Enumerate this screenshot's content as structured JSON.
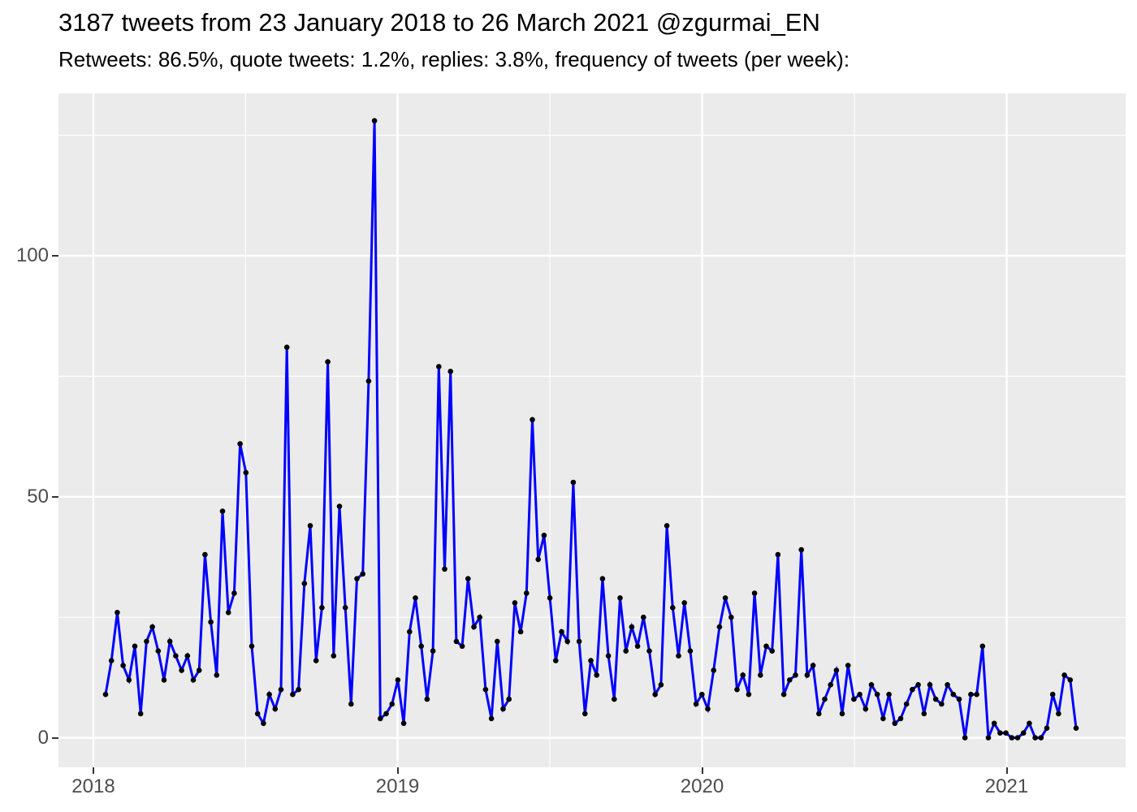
{
  "header": {
    "title": "3187 tweets from 23 January 2018 to 26 March 2021 @zgurmai_EN",
    "subtitle": "Retweets: 86.5%, quote tweets: 1.2%, replies: 3.8%, frequency of tweets (per week):"
  },
  "colors": {
    "line": "#0000FF",
    "point": "#000000",
    "panel_background": "#EBEBEB",
    "gridline": "#FFFFFF",
    "axis_text": "#4D4D4D",
    "tick_mark": "#333333",
    "title_text": "#000000"
  },
  "chart_data": {
    "type": "line",
    "title": "3187 tweets from 23 January 2018 to 26 March 2021 @zgurmai_EN",
    "subtitle": "Retweets: 86.5%, quote tweets: 1.2%, replies: 3.8%, frequency of tweets (per week):",
    "series_name": "tweets per week",
    "x_unit": "week",
    "x_first_point": "week of 23 January 2018",
    "x_last_point": "week of 26 March 2021",
    "n_points": 167,
    "values": [
      9,
      16,
      26,
      15,
      12,
      19,
      5,
      20,
      23,
      18,
      12,
      20,
      17,
      14,
      17,
      12,
      14,
      38,
      24,
      13,
      47,
      26,
      30,
      61,
      55,
      19,
      5,
      3,
      9,
      6,
      10,
      81,
      9,
      10,
      32,
      44,
      16,
      27,
      78,
      17,
      48,
      27,
      7,
      33,
      34,
      74,
      128,
      4,
      5,
      7,
      12,
      3,
      22,
      29,
      19,
      8,
      18,
      77,
      35,
      76,
      20,
      19,
      33,
      23,
      25,
      10,
      4,
      20,
      6,
      8,
      28,
      22,
      30,
      66,
      37,
      42,
      29,
      16,
      22,
      20,
      53,
      20,
      5,
      16,
      13,
      33,
      17,
      8,
      29,
      18,
      23,
      19,
      25,
      18,
      9,
      11,
      44,
      27,
      17,
      28,
      18,
      7,
      9,
      6,
      14,
      23,
      29,
      25,
      10,
      13,
      9,
      30,
      13,
      19,
      18,
      38,
      9,
      12,
      13,
      39,
      13,
      15,
      5,
      8,
      11,
      14,
      5,
      15,
      8,
      9,
      6,
      11,
      9,
      4,
      9,
      3,
      4,
      7,
      10,
      11,
      5,
      11,
      8,
      7,
      11,
      9,
      8,
      0,
      9,
      9,
      19,
      0,
      3,
      1,
      1,
      0,
      0,
      1,
      3,
      0,
      0,
      2,
      9,
      5,
      13,
      12,
      2
    ],
    "x_tick_labels": [
      "2018",
      "2019",
      "2020",
      "2021"
    ],
    "y_tick_labels": [
      "0",
      "50",
      "100"
    ],
    "y_major_gridlines": [
      0,
      50,
      100
    ],
    "y_minor_gridlines": [
      25,
      75,
      125
    ],
    "ylim": [
      0,
      133
    ],
    "grid": true,
    "legend": false
  }
}
